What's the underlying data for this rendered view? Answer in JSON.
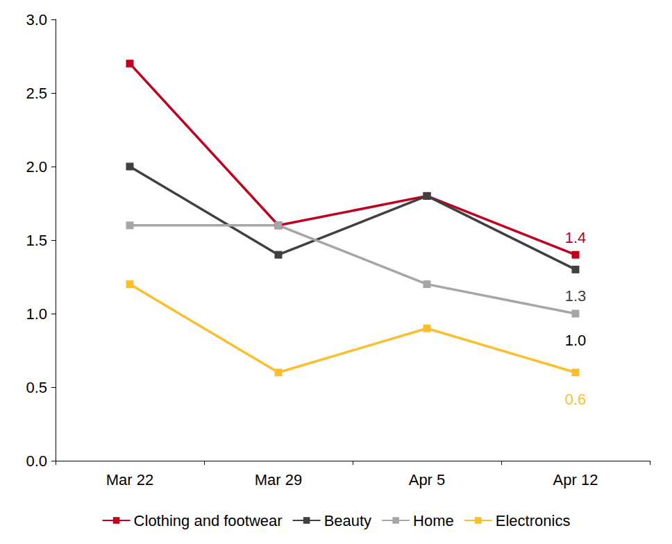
{
  "chart_data": {
    "type": "line",
    "categories": [
      "Mar 22",
      "Mar 29",
      "Apr 5",
      "Apr 12"
    ],
    "series": [
      {
        "name": "Clothing and footwear",
        "color": "#c0001e",
        "values": [
          2.7,
          1.6,
          1.8,
          1.4
        ]
      },
      {
        "name": "Beauty",
        "color": "#404040",
        "values": [
          2.0,
          1.4,
          1.8,
          1.3
        ]
      },
      {
        "name": "Home",
        "color": "#a6a6a6",
        "values": [
          1.6,
          1.6,
          1.2,
          1.0
        ]
      },
      {
        "name": "Electronics",
        "color": "#fbbf2e",
        "values": [
          1.2,
          0.6,
          0.9,
          0.6
        ]
      }
    ],
    "annotations": [
      {
        "series": "Clothing and footwear",
        "category": "Apr 12",
        "text": "1.4"
      },
      {
        "series": "Beauty",
        "category": "Apr 12",
        "text": "1.3"
      },
      {
        "series": "Home",
        "category": "Apr 12",
        "text": "1.0"
      },
      {
        "series": "Electronics",
        "category": "Apr 12",
        "text": "0.6"
      }
    ],
    "ylim": [
      0,
      3
    ],
    "yticks": [
      {
        "value": 0,
        "label": "0.0"
      },
      {
        "value": 0.5,
        "label": "0.5"
      },
      {
        "value": 1,
        "label": "1.0"
      },
      {
        "value": 1.5,
        "label": "1.5"
      },
      {
        "value": 2,
        "label": "2.0"
      },
      {
        "value": 2.5,
        "label": "2.5"
      },
      {
        "value": 3,
        "label": "3.0"
      }
    ],
    "grid": false,
    "legend": "bottom",
    "marker": "square"
  }
}
